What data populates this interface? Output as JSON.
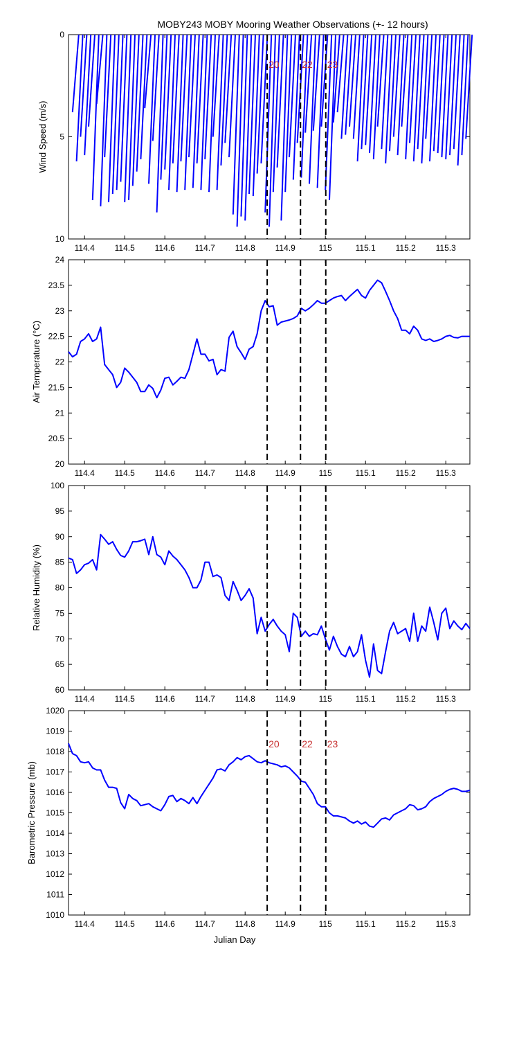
{
  "title": "MOBY243 MOBY Mooring Weather Observations (+- 12 hours)",
  "colors": {
    "series": "#0000ff",
    "marker_label": "#c83232",
    "axis": "#000000"
  },
  "chart_data": [
    {
      "type": "line",
      "ylabel": "Wind Speed (m/s)",
      "xlabel": "",
      "xlim": [
        114.36,
        115.36
      ],
      "ylim": [
        10,
        0
      ],
      "yticks": [
        "0",
        "5",
        "10"
      ],
      "xticks": [
        "114.4",
        "114.5",
        "114.6",
        "114.7",
        "114.8",
        "114.9",
        "115",
        "115.1",
        "115.2",
        "115.3"
      ],
      "markers": [
        {
          "x": 114.855,
          "label": "20"
        },
        {
          "x": 114.938,
          "label": "22"
        },
        {
          "x": 115.001,
          "label": "23"
        }
      ],
      "series": [
        {
          "x": [
            114.37,
            114.38,
            114.39,
            114.4,
            114.41,
            114.42,
            114.43,
            114.44,
            114.45,
            114.46,
            114.47,
            114.48,
            114.49,
            114.5,
            114.51,
            114.52,
            114.53,
            114.54,
            114.55,
            114.56,
            114.57,
            114.58,
            114.59,
            114.6,
            114.61,
            114.62,
            114.63,
            114.64,
            114.65,
            114.66,
            114.67,
            114.68,
            114.69,
            114.7,
            114.71,
            114.72,
            114.73,
            114.74,
            114.75,
            114.76,
            114.77,
            114.78,
            114.79,
            114.8,
            114.81,
            114.82,
            114.83,
            114.84,
            114.85,
            114.86,
            114.87,
            114.88,
            114.89,
            114.9,
            114.91,
            114.92,
            114.93,
            114.94,
            114.95,
            114.96,
            114.97,
            114.98,
            114.99,
            115.0,
            115.01,
            115.02,
            115.03,
            115.04,
            115.05,
            115.06,
            115.07,
            115.08,
            115.09,
            115.1,
            115.11,
            115.12,
            115.13,
            115.14,
            115.15,
            115.16,
            115.17,
            115.18,
            115.19,
            115.2,
            115.21,
            115.22,
            115.23,
            115.24,
            115.25,
            115.26,
            115.27,
            115.28,
            115.29,
            115.3,
            115.31,
            115.32,
            115.33,
            115.34,
            115.35
          ],
          "values": [
            3.8,
            6.2,
            5.0,
            5.9,
            4.5,
            8.1,
            3.4,
            8.4,
            6.0,
            8.2,
            7.8,
            7.6,
            7.2,
            8.2,
            8.1,
            7.4,
            6.7,
            6.1,
            3.6,
            7.3,
            5.2,
            8.7,
            7.1,
            6.6,
            7.6,
            6.3,
            7.7,
            6.2,
            7.6,
            6.0,
            7.5,
            6.3,
            7.6,
            6.1,
            7.7,
            5.0,
            7.6,
            6.4,
            5.3,
            6.0,
            8.8,
            9.4,
            8.9,
            9.1,
            7.8,
            7.9,
            6.8,
            6.3,
            8.7,
            9.4,
            7.7,
            6.5,
            9.1,
            7.7,
            6.0,
            7.1,
            5.3,
            7.0,
            4.8,
            7.3,
            4.7,
            7.5,
            4.5,
            7.6,
            8.1,
            4.3,
            3.8,
            5.1,
            4.9,
            4.5,
            5.1,
            6.2,
            5.6,
            5.4,
            5.8,
            6.1,
            4.5,
            5.6,
            6.3,
            5.7,
            5.0,
            5.9,
            4.5,
            6.1,
            5.3,
            6.2,
            5.6,
            6.3,
            5.1,
            6.2,
            5.7,
            5.8,
            6.0,
            6.1,
            5.9,
            5.6,
            6.4,
            5.9,
            5.1
          ]
        }
      ]
    },
    {
      "type": "line",
      "ylabel": "Air Temperature (°C)",
      "xlabel": "",
      "xlim": [
        114.36,
        115.36
      ],
      "ylim": [
        20,
        24
      ],
      "yticks": [
        "24",
        "23.5",
        "23",
        "22.5",
        "22",
        "21.5",
        "21",
        "20.5",
        "20"
      ],
      "xticks": [
        "114.4",
        "114.5",
        "114.6",
        "114.7",
        "114.8",
        "114.9",
        "115",
        "115.1",
        "115.2",
        "115.3"
      ],
      "markers": [
        {
          "x": 114.855,
          "label": ""
        },
        {
          "x": 114.938,
          "label": ""
        },
        {
          "x": 115.001,
          "label": ""
        }
      ],
      "series": [
        {
          "x": [
            114.36,
            114.37,
            114.38,
            114.39,
            114.4,
            114.41,
            114.42,
            114.43,
            114.44,
            114.45,
            114.46,
            114.47,
            114.48,
            114.49,
            114.5,
            114.51,
            114.52,
            114.53,
            114.54,
            114.55,
            114.56,
            114.57,
            114.58,
            114.59,
            114.6,
            114.61,
            114.62,
            114.63,
            114.64,
            114.65,
            114.66,
            114.67,
            114.68,
            114.69,
            114.7,
            114.71,
            114.72,
            114.73,
            114.74,
            114.75,
            114.76,
            114.77,
            114.78,
            114.79,
            114.8,
            114.81,
            114.82,
            114.83,
            114.84,
            114.85,
            114.86,
            114.87,
            114.88,
            114.89,
            114.9,
            114.91,
            114.92,
            114.93,
            114.94,
            114.95,
            114.96,
            114.97,
            114.98,
            114.99,
            115.0,
            115.01,
            115.02,
            115.03,
            115.04,
            115.05,
            115.06,
            115.07,
            115.08,
            115.09,
            115.1,
            115.11,
            115.12,
            115.13,
            115.14,
            115.15,
            115.16,
            115.17,
            115.18,
            115.19,
            115.2,
            115.21,
            115.22,
            115.23,
            115.24,
            115.25,
            115.26,
            115.27,
            115.28,
            115.29,
            115.3,
            115.31,
            115.32,
            115.33,
            115.34,
            115.35,
            115.36
          ],
          "values": [
            22.2,
            22.1,
            22.15,
            22.4,
            22.45,
            22.55,
            22.4,
            22.45,
            22.68,
            21.95,
            21.85,
            21.75,
            21.5,
            21.6,
            21.88,
            21.8,
            21.7,
            21.6,
            21.42,
            21.42,
            21.55,
            21.48,
            21.3,
            21.45,
            21.68,
            21.7,
            21.55,
            21.62,
            21.7,
            21.68,
            21.85,
            22.15,
            22.45,
            22.15,
            22.15,
            22.02,
            22.05,
            21.75,
            21.85,
            21.82,
            22.48,
            22.6,
            22.3,
            22.18,
            22.05,
            22.25,
            22.3,
            22.55,
            23.0,
            23.2,
            23.08,
            23.1,
            22.72,
            22.78,
            22.8,
            22.82,
            22.85,
            22.9,
            23.05,
            23.0,
            23.05,
            23.12,
            23.2,
            23.15,
            23.15,
            23.2,
            23.25,
            23.28,
            23.3,
            23.2,
            23.28,
            23.35,
            23.42,
            23.3,
            23.25,
            23.4,
            23.5,
            23.6,
            23.55,
            23.38,
            23.2,
            23.0,
            22.85,
            22.62,
            22.62,
            22.55,
            22.7,
            22.62,
            22.45,
            22.42,
            22.45,
            22.4,
            22.42,
            22.45,
            22.5,
            22.52,
            22.48,
            22.47,
            22.5,
            22.5,
            22.5
          ]
        }
      ]
    },
    {
      "type": "line",
      "ylabel": "Relative Humidity (%)",
      "xlabel": "",
      "xlim": [
        114.36,
        115.36
      ],
      "ylim": [
        60,
        100
      ],
      "yticks": [
        "100",
        "95",
        "90",
        "85",
        "80",
        "75",
        "70",
        "65",
        "60"
      ],
      "xticks": [
        "114.4",
        "114.5",
        "114.6",
        "114.7",
        "114.8",
        "114.9",
        "115",
        "115.1",
        "115.2",
        "115.3"
      ],
      "markers": [
        {
          "x": 114.855,
          "label": ""
        },
        {
          "x": 114.938,
          "label": ""
        },
        {
          "x": 115.001,
          "label": ""
        }
      ],
      "series": [
        {
          "x": [
            114.36,
            114.37,
            114.38,
            114.39,
            114.4,
            114.41,
            114.42,
            114.43,
            114.44,
            114.45,
            114.46,
            114.47,
            114.48,
            114.49,
            114.5,
            114.51,
            114.52,
            114.53,
            114.54,
            114.55,
            114.56,
            114.57,
            114.58,
            114.59,
            114.6,
            114.61,
            114.62,
            114.63,
            114.64,
            114.65,
            114.66,
            114.67,
            114.68,
            114.69,
            114.7,
            114.71,
            114.72,
            114.73,
            114.74,
            114.75,
            114.76,
            114.77,
            114.78,
            114.79,
            114.8,
            114.81,
            114.82,
            114.83,
            114.84,
            114.85,
            114.86,
            114.87,
            114.88,
            114.89,
            114.9,
            114.91,
            114.92,
            114.93,
            114.94,
            114.95,
            114.96,
            114.97,
            114.98,
            114.99,
            115.0,
            115.01,
            115.02,
            115.03,
            115.04,
            115.05,
            115.06,
            115.07,
            115.08,
            115.09,
            115.1,
            115.11,
            115.12,
            115.13,
            115.14,
            115.15,
            115.16,
            115.17,
            115.18,
            115.19,
            115.2,
            115.21,
            115.22,
            115.23,
            115.24,
            115.25,
            115.26,
            115.27,
            115.28,
            115.29,
            115.3,
            115.31,
            115.32,
            115.33,
            115.34,
            115.35,
            115.36
          ],
          "values": [
            85.8,
            85.5,
            82.8,
            83.5,
            84.5,
            84.8,
            85.5,
            83.5,
            90.4,
            89.5,
            88.5,
            89.0,
            87.5,
            86.3,
            86.0,
            87.2,
            89.0,
            89.0,
            89.2,
            89.5,
            86.5,
            90.0,
            86.5,
            86.0,
            84.5,
            87.2,
            86.2,
            85.5,
            84.5,
            83.5,
            82.0,
            80.0,
            80.0,
            81.5,
            85.0,
            85.0,
            82.2,
            82.5,
            82.0,
            78.5,
            77.5,
            81.2,
            79.5,
            77.5,
            78.5,
            79.8,
            78.0,
            71.0,
            74.2,
            71.5,
            72.8,
            73.8,
            72.5,
            71.5,
            70.8,
            67.5,
            75.0,
            74.2,
            70.5,
            71.5,
            70.5,
            71.0,
            70.8,
            72.5,
            70.0,
            67.8,
            70.5,
            68.5,
            67.0,
            66.5,
            68.5,
            66.5,
            67.5,
            70.8,
            65.8,
            62.5,
            69.0,
            63.8,
            63.2,
            67.5,
            71.5,
            73.2,
            71.0,
            71.5,
            72.0,
            69.5,
            75.0,
            69.5,
            72.5,
            71.5,
            76.2,
            73.2,
            69.8,
            75.0,
            76.0,
            72.0,
            73.5,
            72.5,
            71.8,
            73.0,
            72.0
          ]
        }
      ]
    },
    {
      "type": "line",
      "ylabel": "Barometric Pressure (mb)",
      "xlabel": "Julian Day",
      "xlim": [
        114.36,
        115.36
      ],
      "ylim": [
        1010,
        1020
      ],
      "yticks": [
        "1020",
        "1019",
        "1018",
        "1017",
        "1016",
        "1015",
        "1014",
        "1013",
        "1012",
        "1011",
        "1010"
      ],
      "xticks": [
        "114.4",
        "114.5",
        "114.6",
        "114.7",
        "114.8",
        "114.9",
        "115",
        "115.1",
        "115.2",
        "115.3"
      ],
      "markers": [
        {
          "x": 114.855,
          "label": "20"
        },
        {
          "x": 114.938,
          "label": "22"
        },
        {
          "x": 115.001,
          "label": "23"
        }
      ],
      "series": [
        {
          "x": [
            114.36,
            114.37,
            114.38,
            114.39,
            114.4,
            114.41,
            114.42,
            114.43,
            114.44,
            114.45,
            114.46,
            114.47,
            114.48,
            114.49,
            114.5,
            114.51,
            114.52,
            114.53,
            114.54,
            114.55,
            114.56,
            114.57,
            114.58,
            114.59,
            114.6,
            114.61,
            114.62,
            114.63,
            114.64,
            114.65,
            114.66,
            114.67,
            114.68,
            114.69,
            114.7,
            114.71,
            114.72,
            114.73,
            114.74,
            114.75,
            114.76,
            114.77,
            114.78,
            114.79,
            114.8,
            114.81,
            114.82,
            114.83,
            114.84,
            114.85,
            114.86,
            114.87,
            114.88,
            114.89,
            114.9,
            114.91,
            114.92,
            114.93,
            114.94,
            114.95,
            114.96,
            114.97,
            114.98,
            114.99,
            115.0,
            115.01,
            115.02,
            115.03,
            115.04,
            115.05,
            115.06,
            115.07,
            115.08,
            115.09,
            115.1,
            115.11,
            115.12,
            115.13,
            115.14,
            115.15,
            115.16,
            115.17,
            115.18,
            115.19,
            115.2,
            115.21,
            115.22,
            115.23,
            115.24,
            115.25,
            115.26,
            115.27,
            115.28,
            115.29,
            115.3,
            115.31,
            115.32,
            115.33,
            115.34,
            115.35,
            115.36
          ],
          "values": [
            1018.4,
            1017.9,
            1017.8,
            1017.5,
            1017.45,
            1017.5,
            1017.2,
            1017.1,
            1017.1,
            1016.6,
            1016.25,
            1016.25,
            1016.2,
            1015.5,
            1015.2,
            1015.9,
            1015.7,
            1015.6,
            1015.35,
            1015.4,
            1015.45,
            1015.3,
            1015.2,
            1015.1,
            1015.4,
            1015.8,
            1015.85,
            1015.55,
            1015.7,
            1015.6,
            1015.45,
            1015.75,
            1015.45,
            1015.8,
            1016.1,
            1016.4,
            1016.7,
            1017.1,
            1017.15,
            1017.05,
            1017.35,
            1017.5,
            1017.7,
            1017.6,
            1017.75,
            1017.8,
            1017.65,
            1017.5,
            1017.45,
            1017.55,
            1017.45,
            1017.4,
            1017.35,
            1017.25,
            1017.3,
            1017.2,
            1017.0,
            1016.8,
            1016.55,
            1016.5,
            1016.2,
            1015.9,
            1015.45,
            1015.3,
            1015.3,
            1015.0,
            1014.85,
            1014.85,
            1014.8,
            1014.75,
            1014.6,
            1014.5,
            1014.6,
            1014.45,
            1014.55,
            1014.35,
            1014.3,
            1014.5,
            1014.7,
            1014.75,
            1014.65,
            1014.9,
            1015.0,
            1015.1,
            1015.2,
            1015.4,
            1015.35,
            1015.15,
            1015.2,
            1015.3,
            1015.55,
            1015.7,
            1015.8,
            1015.9,
            1016.05,
            1016.15,
            1016.2,
            1016.15,
            1016.05,
            1016.05,
            1016.1
          ]
        }
      ]
    }
  ]
}
